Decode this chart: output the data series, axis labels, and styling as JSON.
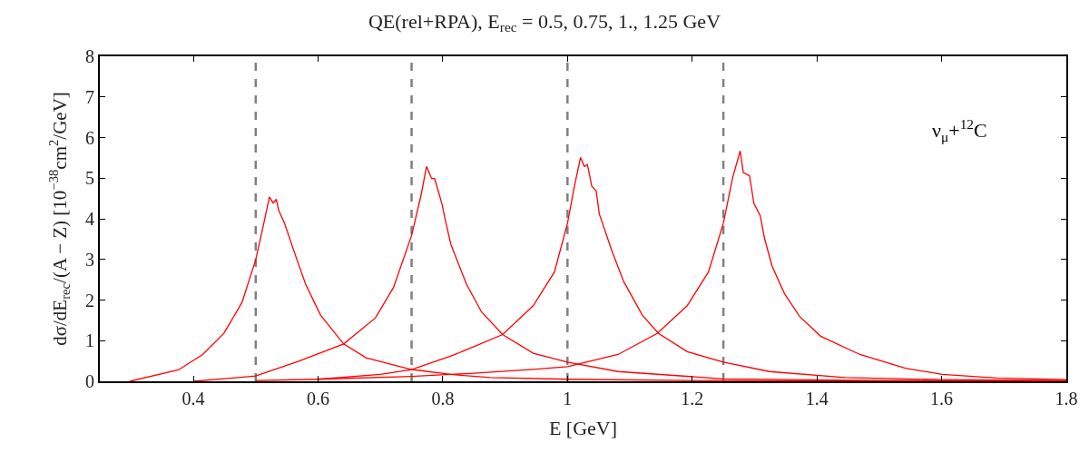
{
  "chart_data": {
    "type": "line",
    "title": "QE(rel+RPA), E$_{rec}$ = 0.5, 0.75, 1., 1.25 GeV",
    "xlabel": "E [GeV]",
    "ylabel": "dσ/dE$_{rec}$/(A − Z) [10$^{−38}$cm$^{2}$/GeV]",
    "annotations": [
      "ν$_{μ}$+$^{12}$C"
    ],
    "series": [
      {
        "color": "#ff0000",
        "x": [
          0.298,
          0.376,
          0.415,
          0.449,
          0.478,
          0.5,
          0.512,
          0.522,
          0.528,
          0.533,
          0.537,
          0.546,
          0.561,
          0.58,
          0.604,
          0.641,
          0.677,
          0.75,
          0.813,
          0.876,
          1.0,
          1.2,
          1.5,
          1.8
        ],
        "values": [
          0.0,
          0.28,
          0.66,
          1.18,
          1.94,
          2.99,
          3.82,
          4.54,
          4.39,
          4.48,
          4.2,
          3.9,
          3.22,
          2.39,
          1.63,
          0.92,
          0.58,
          0.29,
          0.17,
          0.09,
          0.05,
          0.02,
          0.01,
          0.0
        ]
      },
      {
        "color": "#ff0000",
        "x": [
          0.4,
          0.5,
          0.57,
          0.641,
          0.692,
          0.721,
          0.75,
          0.765,
          0.774,
          0.782,
          0.787,
          0.799,
          0.804,
          0.813,
          0.838,
          0.862,
          0.896,
          0.945,
          1.0,
          1.081,
          1.25,
          1.5,
          1.8
        ],
        "values": [
          0.0,
          0.13,
          0.5,
          0.92,
          1.56,
          2.31,
          3.59,
          4.57,
          5.29,
          4.99,
          4.99,
          4.35,
          3.97,
          3.37,
          2.39,
          1.71,
          1.15,
          0.69,
          0.47,
          0.24,
          0.06,
          0.02,
          0.01
        ]
      },
      {
        "color": "#ff0000",
        "x": [
          0.6,
          0.7,
          0.75,
          0.818,
          0.896,
          0.945,
          0.979,
          1.0,
          1.012,
          1.021,
          1.027,
          1.032,
          1.039,
          1.046,
          1.051,
          1.071,
          1.09,
          1.12,
          1.146,
          1.192,
          1.25,
          1.324,
          1.445,
          1.6,
          1.8
        ],
        "values": [
          0.05,
          0.17,
          0.29,
          0.65,
          1.15,
          1.86,
          2.69,
          3.89,
          4.87,
          5.51,
          5.29,
          5.33,
          4.8,
          4.69,
          4.12,
          3.22,
          2.46,
          1.63,
          1.18,
          0.73,
          0.47,
          0.24,
          0.09,
          0.04,
          0.02
        ]
      },
      {
        "color": "#ff0000",
        "x": [
          0.5,
          0.6,
          0.75,
          0.85,
          0.95,
          1.0,
          1.081,
          1.144,
          1.192,
          1.226,
          1.25,
          1.265,
          1.277,
          1.282,
          1.292,
          1.299,
          1.309,
          1.316,
          1.328,
          1.348,
          1.372,
          1.406,
          1.469,
          1.542,
          1.601,
          1.688,
          1.8
        ],
        "values": [
          0.02,
          0.05,
          0.12,
          0.2,
          0.3,
          0.36,
          0.66,
          1.18,
          1.86,
          2.69,
          3.89,
          5.02,
          5.67,
          5.14,
          5.06,
          4.38,
          4.08,
          3.52,
          2.84,
          2.16,
          1.6,
          1.11,
          0.66,
          0.32,
          0.17,
          0.08,
          0.04
        ]
      }
    ],
    "ref_lines": [
      {
        "axis": "x",
        "value": 0.5,
        "color": "#808080",
        "line_style": "dashed"
      },
      {
        "axis": "x",
        "value": 0.75,
        "color": "#808080",
        "line_style": "dashed"
      },
      {
        "axis": "x",
        "value": 1,
        "color": "#808080",
        "line_style": "dashed"
      },
      {
        "axis": "x",
        "value": 1.25,
        "color": "#808080",
        "line_style": "dashed"
      }
    ],
    "xlim": [
      0.25,
      1.8
    ],
    "xticks": [
      0.4,
      0.6,
      0.8,
      1,
      1.2,
      1.4,
      1.6,
      1.8
    ],
    "ylim": [
      0,
      8
    ],
    "yticks": [
      0,
      1,
      2,
      3,
      4,
      5,
      6,
      7,
      8
    ],
    "grid": false,
    "marker": "none",
    "line_style": "solid"
  }
}
